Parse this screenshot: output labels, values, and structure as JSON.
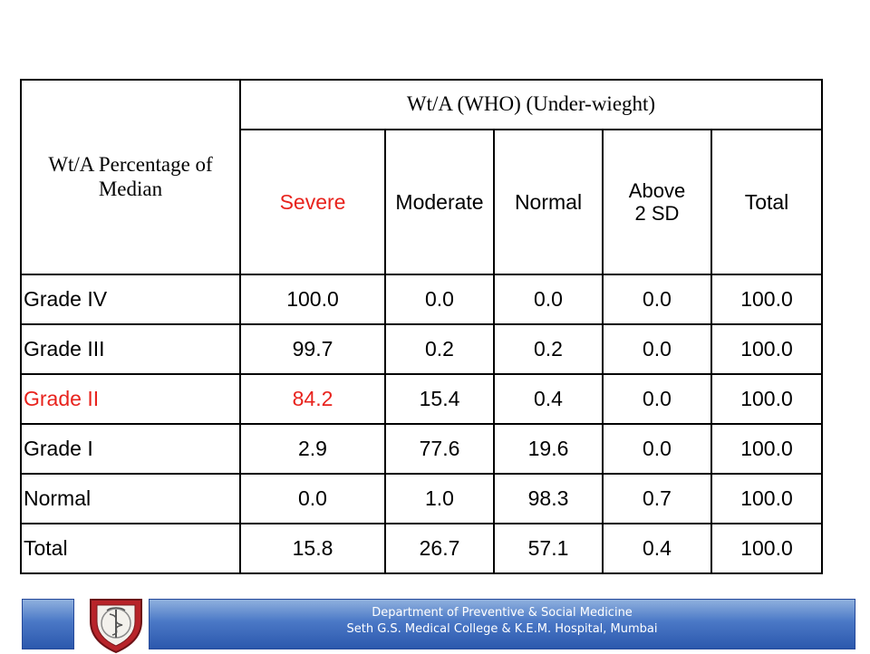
{
  "table": {
    "row_header": "Wt/A Percentage of Median",
    "group_header": "Wt/A (WHO) (Under-wieght)",
    "columns": [
      "Severe",
      "Moderate",
      "Normal",
      "Above 2 SD",
      "Total"
    ],
    "rows": [
      {
        "label": "Grade IV",
        "values": [
          "100.0",
          "0.0",
          "0.0",
          "0.0",
          "100.0"
        ]
      },
      {
        "label": "Grade III",
        "values": [
          "99.7",
          "0.2",
          "0.2",
          "0.0",
          "100.0"
        ]
      },
      {
        "label": "Grade II",
        "values": [
          "84.2",
          "15.4",
          "0.4",
          "0.0",
          "100.0"
        ]
      },
      {
        "label": "Grade I",
        "values": [
          "2.9",
          "77.6",
          "19.6",
          "0.0",
          "100.0"
        ]
      },
      {
        "label": "Normal",
        "values": [
          "0.0",
          "1.0",
          "98.3",
          "0.7",
          "100.0"
        ]
      },
      {
        "label": "Total",
        "values": [
          "15.8",
          "26.7",
          "57.1",
          "0.4",
          "100.0"
        ]
      }
    ],
    "highlight_color": "#e8231d"
  },
  "footer": {
    "line1": "Department of Preventive & Social Medicine",
    "line2": "Seth G.S. Medical College & K.E.M. Hospital, Mumbai",
    "crest_icon": "college-crest-icon"
  }
}
